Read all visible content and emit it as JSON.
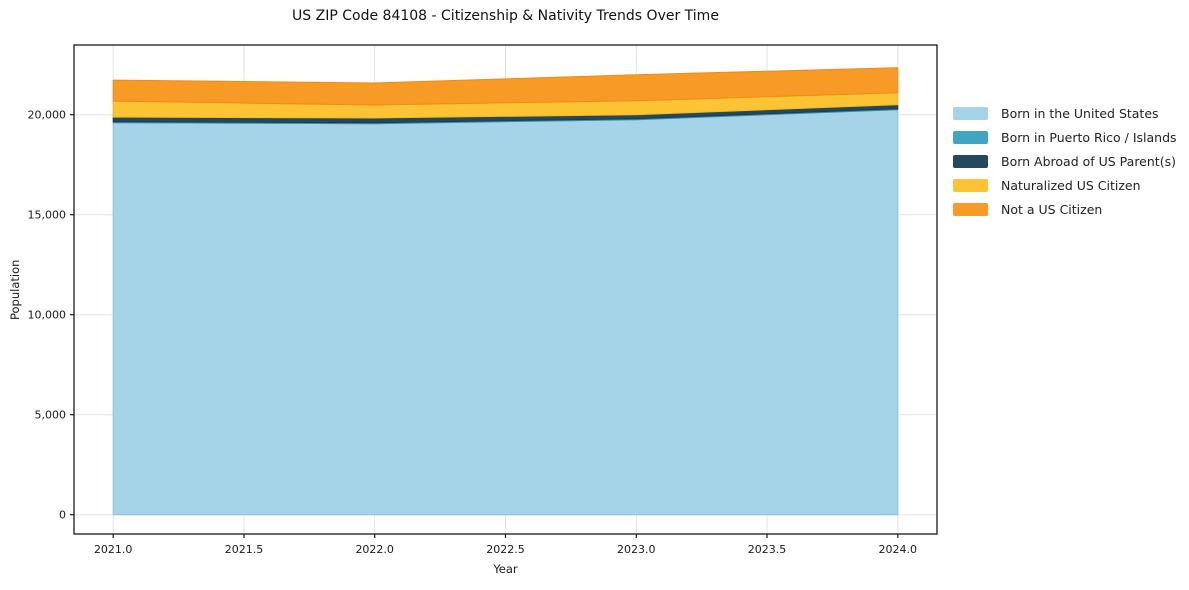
{
  "chart_data": {
    "type": "area",
    "stacked": true,
    "title": "US ZIP Code 84108 - Citizenship & Nativity Trends Over Time",
    "xlabel": "Year",
    "ylabel": "Population",
    "x": [
      2021,
      2022,
      2023,
      2024
    ],
    "series": [
      {
        "name": "Born in the United States",
        "color": "#a5d3e8",
        "edge": "#8fc3dc",
        "values": [
          19600,
          19550,
          19750,
          20250
        ]
      },
      {
        "name": "Born in Puerto Rico / Islands",
        "color": "#3fa5c3",
        "edge": "#358fb0",
        "values": [
          50,
          50,
          50,
          50
        ]
      },
      {
        "name": "Born Abroad of US Parent(s)",
        "color": "#24495c",
        "edge": "#1d3c4c",
        "values": [
          230,
          235,
          200,
          200
        ]
      },
      {
        "name": "Naturalized US Citizen",
        "color": "#fcc434",
        "edge": "#f5b71d",
        "values": [
          800,
          650,
          700,
          600
        ]
      },
      {
        "name": "Not a US Citizen",
        "color": "#f89a26",
        "edge": "#f08c12",
        "values": [
          1050,
          1100,
          1300,
          1250
        ]
      }
    ],
    "x_ticks": [
      2021.0,
      2021.5,
      2022.0,
      2022.5,
      2023.0,
      2023.5,
      2024.0
    ],
    "x_tick_labels": [
      "2021.0",
      "2021.5",
      "2022.0",
      "2022.5",
      "2023.0",
      "2023.5",
      "2024.0"
    ],
    "y_ticks": [
      0,
      5000,
      10000,
      15000,
      20000
    ],
    "y_tick_labels": [
      "0",
      "5,000",
      "10,000",
      "15,000",
      "20,000"
    ],
    "xlim": [
      2020.85,
      2024.15
    ],
    "ylim": [
      -965,
      23485
    ],
    "grid": true,
    "legend_position": "center right",
    "colors": {
      "grid": "#e3e3e3",
      "spine": "#1a1a1a",
      "tick_text": "#1a1a1a",
      "plot_background": "#ffffff"
    }
  }
}
